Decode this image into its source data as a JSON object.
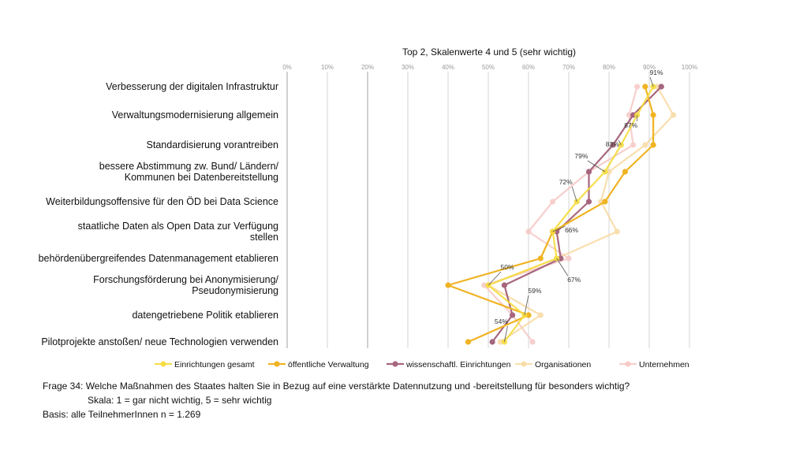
{
  "chart_data": {
    "type": "line",
    "title": "Top 2, Skalenwerte 4 und 5 (sehr wichtig)",
    "orientation": "horizontal",
    "xlim": [
      0,
      100
    ],
    "x_ticks": [
      "0%",
      "10%",
      "20%",
      "30%",
      "40%",
      "50%",
      "60%",
      "70%",
      "80%",
      "90%",
      "100%"
    ],
    "categories": [
      [
        "Verbesserung der digitalen Infrastruktur"
      ],
      [
        "Verwaltungsmodernisierung allgemein"
      ],
      [
        "Standardisierung vorantreiben"
      ],
      [
        "bessere Abstimmung zw. Bund/ Ländern/",
        "Kommunen bei Datenbereitstellung"
      ],
      [
        "Weiterbildungsoffensive für den ÖD bei Data Science"
      ],
      [
        "staatliche Daten als Open Data zur Verfügung",
        "stellen"
      ],
      [
        "behördenübergreifendes Datenmanagement etablieren"
      ],
      [
        "Forschungsförderung bei Anonymisierung/",
        "Pseudonymisierung"
      ],
      [
        "datengetriebene Politik etablieren"
      ],
      [
        "Pilotprojekte anstoßen/ neue Technologien verwenden"
      ]
    ],
    "series": [
      {
        "name": "Einrichtungen gesamt",
        "color": "#f6dc3c",
        "opacity": 0.9,
        "values": [
          91,
          87,
          83,
          79,
          72,
          66,
          67,
          50,
          59,
          54
        ]
      },
      {
        "name": "öffentliche Verwaltung",
        "color": "#f0b323",
        "opacity": 1,
        "values": [
          89,
          91,
          91,
          84,
          79,
          66,
          63,
          40,
          60,
          45
        ]
      },
      {
        "name": "wissenschaftl. Einrichtungen",
        "color": "#a6667e",
        "opacity": 1,
        "values": [
          93,
          86,
          81,
          75,
          75,
          67,
          68,
          54,
          56,
          51
        ]
      },
      {
        "name": "Organisationen",
        "color": "#f8d9a0",
        "opacity": 0.85,
        "values": [
          92,
          96,
          89,
          80,
          78,
          82,
          67,
          50,
          63,
          53
        ]
      },
      {
        "name": "Unternehmen",
        "color": "#f5c4c0",
        "opacity": 0.8,
        "values": [
          87,
          85,
          86,
          75,
          66,
          60,
          70,
          49,
          56,
          61
        ]
      }
    ],
    "annotations": [
      {
        "text": "91%",
        "category": 0,
        "value": 91
      },
      {
        "text": "87%",
        "category": 1,
        "value": 87
      },
      {
        "text": "83%",
        "category": 2,
        "value": 83
      },
      {
        "text": "79%",
        "category": 3,
        "value": 79
      },
      {
        "text": "72%",
        "category": 4,
        "value": 72
      },
      {
        "text": "66%",
        "category": 5,
        "value": 66
      },
      {
        "text": "67%",
        "category": 6,
        "value": 67
      },
      {
        "text": "50%",
        "category": 7,
        "value": 50
      },
      {
        "text": "59%",
        "category": 8,
        "value": 59
      },
      {
        "text": "54%",
        "category": 9,
        "value": 54
      }
    ],
    "legend_position": "bottom",
    "grid": true
  },
  "footer": {
    "question": "Frage 34: Welche Maßnahmen des Staates halten Sie in Bezug auf eine verstärkte Datennutzung und -bereitstellung für besonders wichtig?",
    "scale": "Skala: 1 = gar nicht wichtig, 5 = sehr wichtig",
    "basis": "Basis: alle TeilnehmerInnen n = 1.269"
  }
}
